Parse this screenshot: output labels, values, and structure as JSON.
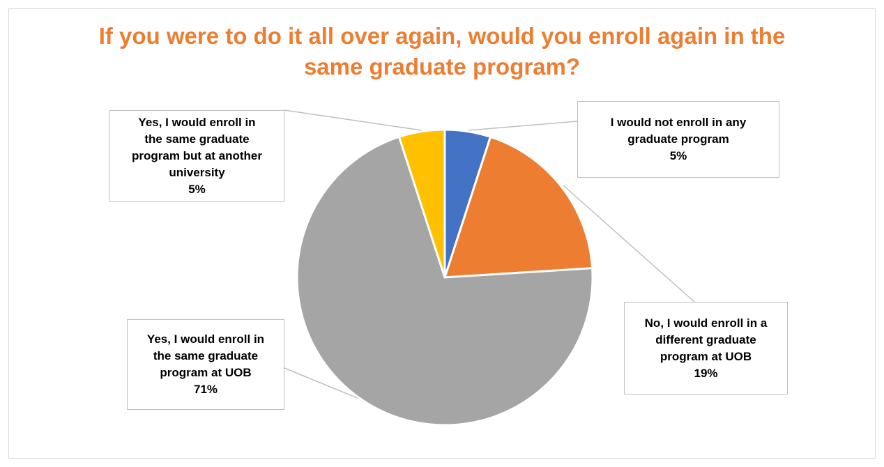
{
  "chart_data": {
    "type": "pie",
    "title_lines": [
      "If you were to do it all over again, would you enroll again in the",
      "same graduate program?"
    ],
    "slices": [
      {
        "label_lines": [
          "I would not enroll in any",
          "graduate program"
        ],
        "value": 5,
        "display": "5%",
        "color": "#4472c4"
      },
      {
        "label_lines": [
          "No, I would enroll in a",
          "different graduate",
          "program at UOB"
        ],
        "value": 19,
        "display": "19%",
        "color": "#ed7d31"
      },
      {
        "label_lines": [
          "Yes, I would enroll in",
          "the same graduate",
          "program at UOB"
        ],
        "value": 71,
        "display": "71%",
        "color": "#a5a5a5"
      },
      {
        "label_lines": [
          "Yes, I would enroll in",
          "the same graduate",
          "program but at another",
          "university"
        ],
        "value": 5,
        "display": "5%",
        "color": "#ffc000"
      }
    ]
  }
}
